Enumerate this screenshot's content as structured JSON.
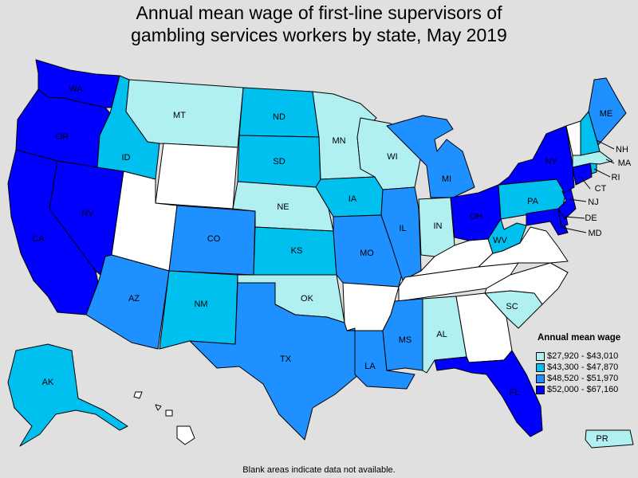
{
  "title_line1": "Annual mean wage of first-line supervisors of",
  "title_line2": "gambling services workers by state, May 2019",
  "legend": {
    "title": "Annual mean wage",
    "items": [
      {
        "label": "$27,920 - $43,010",
        "color": "#b0f0f0"
      },
      {
        "label": "$43,300 - $47,870",
        "color": "#00c0f0"
      },
      {
        "label": "$48,520 - $51,970",
        "color": "#1e90ff"
      },
      {
        "label": "$52,000 - $67,160",
        "color": "#0000ff"
      }
    ]
  },
  "no_data_color": "#ffffff",
  "footnote": "Blank areas indicate data not available.",
  "states": {
    "WA": {
      "label": "WA",
      "bin": 3
    },
    "OR": {
      "label": "OR",
      "bin": 3
    },
    "CA": {
      "label": "CA",
      "bin": 3
    },
    "NV": {
      "label": "NV",
      "bin": 3
    },
    "ID": {
      "label": "ID",
      "bin": 1
    },
    "MT": {
      "label": "MT",
      "bin": 0
    },
    "WY": {
      "label": "",
      "bin": null
    },
    "UT": {
      "label": "",
      "bin": null
    },
    "AZ": {
      "label": "AZ",
      "bin": 2
    },
    "CO": {
      "label": "CO",
      "bin": 2
    },
    "NM": {
      "label": "NM",
      "bin": 1
    },
    "ND": {
      "label": "ND",
      "bin": 1
    },
    "SD": {
      "label": "SD",
      "bin": 1
    },
    "NE": {
      "label": "NE",
      "bin": 0
    },
    "KS": {
      "label": "KS",
      "bin": 1
    },
    "OK": {
      "label": "OK",
      "bin": 0
    },
    "TX": {
      "label": "TX",
      "bin": 2
    },
    "MN": {
      "label": "MN",
      "bin": 0
    },
    "IA": {
      "label": "IA",
      "bin": 1
    },
    "MO": {
      "label": "MO",
      "bin": 2
    },
    "AR": {
      "label": "",
      "bin": null
    },
    "LA": {
      "label": "LA",
      "bin": 2
    },
    "WI": {
      "label": "WI",
      "bin": 0
    },
    "IL": {
      "label": "IL",
      "bin": 2
    },
    "MI": {
      "label": "MI",
      "bin": 2
    },
    "IN": {
      "label": "IN",
      "bin": 0
    },
    "OH": {
      "label": "OH",
      "bin": 3
    },
    "KY": {
      "label": "",
      "bin": null
    },
    "TN": {
      "label": "",
      "bin": null
    },
    "MS": {
      "label": "MS",
      "bin": 2
    },
    "AL": {
      "label": "AL",
      "bin": 0
    },
    "GA": {
      "label": "",
      "bin": null
    },
    "FL": {
      "label": "FL",
      "bin": 3
    },
    "SC": {
      "label": "SC",
      "bin": 0
    },
    "NC": {
      "label": "",
      "bin": null
    },
    "VA": {
      "label": "",
      "bin": null
    },
    "WV": {
      "label": "WV",
      "bin": 1
    },
    "PA": {
      "label": "PA",
      "bin": 1
    },
    "NY": {
      "label": "NY",
      "bin": 3
    },
    "VT": {
      "label": "",
      "bin": null
    },
    "NH": {
      "label": "NH",
      "bin": 1
    },
    "ME": {
      "label": "ME",
      "bin": 2
    },
    "MA": {
      "label": "MA",
      "bin": 0
    },
    "RI": {
      "label": "RI",
      "bin": 1
    },
    "CT": {
      "label": "CT",
      "bin": 3
    },
    "NJ": {
      "label": "NJ",
      "bin": 3
    },
    "DE": {
      "label": "DE",
      "bin": 3
    },
    "MD": {
      "label": "MD",
      "bin": 3
    },
    "AK": {
      "label": "AK",
      "bin": 1
    },
    "HI": {
      "label": "",
      "bin": null
    },
    "PR": {
      "label": "PR",
      "bin": 0
    }
  }
}
